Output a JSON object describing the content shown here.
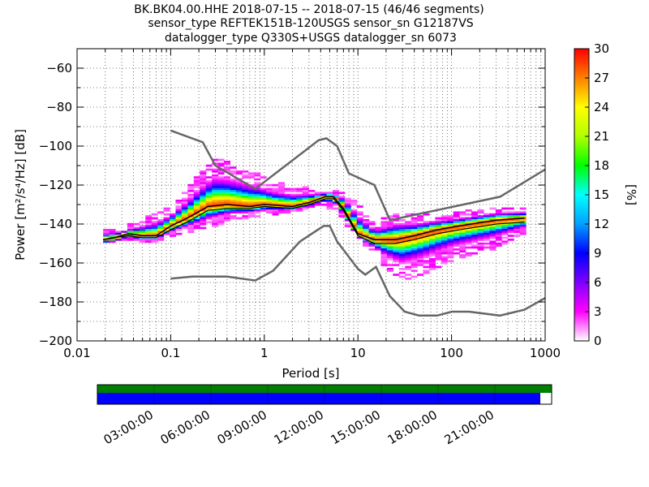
{
  "title_lines": [
    "BK.BK04.00.HHE   2018-07-15 -- 2018-07-15  (46/46 segments)",
    "sensor_type REFTEK151B-120USGS sensor_sn G12187VS",
    "datalogger_type Q330S+USGS datalogger_sn 6073"
  ],
  "chart_data": {
    "type": "heatmap",
    "xlabel": "Period [s]",
    "ylabel": "Power [m²/s⁴/Hz] [dB]",
    "x_scale": "log",
    "xlim": [
      0.01,
      1000
    ],
    "ylim": [
      -200,
      -50
    ],
    "x_ticks": [
      {
        "value": 0.01,
        "label": "0.01"
      },
      {
        "value": 0.1,
        "label": "0.1"
      },
      {
        "value": 1,
        "label": "1"
      },
      {
        "value": 10,
        "label": "10"
      },
      {
        "value": 100,
        "label": "100"
      },
      {
        "value": 1000,
        "label": "1000"
      }
    ],
    "y_ticks": [
      -60,
      -80,
      -100,
      -120,
      -140,
      -160,
      -180,
      -200
    ],
    "grid": true,
    "colorbar": {
      "label": "[%]",
      "min": 0,
      "max": 30,
      "ticks": [
        0,
        3,
        6,
        9,
        12,
        15,
        18,
        21,
        24,
        27,
        30
      ]
    },
    "noise_models": {
      "high": [
        [
          0.1,
          -92
        ],
        [
          0.22,
          -98
        ],
        [
          0.3,
          -110
        ],
        [
          0.8,
          -122
        ],
        [
          3.8,
          -97
        ],
        [
          4.6,
          -96
        ],
        [
          6.0,
          -100
        ],
        [
          8.0,
          -114
        ],
        [
          15.0,
          -120
        ],
        [
          22.0,
          -138
        ],
        [
          330.0,
          -126
        ],
        [
          1000.0,
          -112
        ]
      ],
      "low": [
        [
          0.1,
          -168
        ],
        [
          0.17,
          -167
        ],
        [
          0.4,
          -167
        ],
        [
          0.8,
          -169
        ],
        [
          1.24,
          -164
        ],
        [
          2.4,
          -149
        ],
        [
          4.3,
          -141
        ],
        [
          5.0,
          -141
        ],
        [
          6.0,
          -149
        ],
        [
          10.0,
          -163
        ],
        [
          12.0,
          -166
        ],
        [
          15.6,
          -162
        ],
        [
          21.9,
          -177
        ],
        [
          31.6,
          -185
        ],
        [
          45.0,
          -187
        ],
        [
          70.0,
          -187
        ],
        [
          101.0,
          -185
        ],
        [
          154.0,
          -185
        ],
        [
          328.0,
          -187
        ],
        [
          600.0,
          -184
        ],
        [
          1000.0,
          -178
        ]
      ]
    },
    "mode_curve": [
      [
        0.019,
        -148
      ],
      [
        0.025,
        -147
      ],
      [
        0.035,
        -145
      ],
      [
        0.05,
        -146
      ],
      [
        0.07,
        -146
      ],
      [
        0.1,
        -141
      ],
      [
        0.15,
        -137
      ],
      [
        0.25,
        -131
      ],
      [
        0.4,
        -130
      ],
      [
        0.7,
        -131
      ],
      [
        1.0,
        -130
      ],
      [
        2.0,
        -131
      ],
      [
        3.0,
        -129
      ],
      [
        4.5,
        -126
      ],
      [
        5.5,
        -126
      ],
      [
        7.0,
        -132
      ],
      [
        10.0,
        -145
      ],
      [
        15.0,
        -148
      ],
      [
        25.0,
        -148
      ],
      [
        40.0,
        -146
      ],
      [
        70.0,
        -143
      ],
      [
        120.0,
        -141
      ],
      [
        300.0,
        -138
      ],
      [
        600.0,
        -137
      ]
    ],
    "mean_curve": [
      [
        0.019,
        -148
      ],
      [
        0.025,
        -147
      ],
      [
        0.035,
        -146
      ],
      [
        0.05,
        -147
      ],
      [
        0.07,
        -147
      ],
      [
        0.1,
        -143
      ],
      [
        0.15,
        -139
      ],
      [
        0.25,
        -133
      ],
      [
        0.4,
        -132
      ],
      [
        0.7,
        -132
      ],
      [
        1.0,
        -131
      ],
      [
        2.0,
        -132
      ],
      [
        3.0,
        -130
      ],
      [
        4.5,
        -127
      ],
      [
        5.5,
        -127
      ],
      [
        7.0,
        -133
      ],
      [
        10.0,
        -146
      ],
      [
        15.0,
        -150
      ],
      [
        25.0,
        -150
      ],
      [
        40.0,
        -148
      ],
      [
        70.0,
        -145
      ],
      [
        120.0,
        -143
      ],
      [
        300.0,
        -140
      ],
      [
        600.0,
        -139
      ]
    ],
    "upper_spread": [
      [
        0.03,
        -143
      ],
      [
        0.05,
        -138
      ],
      [
        0.1,
        -132
      ],
      [
        0.15,
        -123
      ],
      [
        0.2,
        -115
      ],
      [
        0.3,
        -107
      ],
      [
        0.5,
        -110
      ],
      [
        0.8,
        -114
      ],
      [
        1.2,
        -119
      ],
      [
        2.0,
        -121
      ],
      [
        3.0,
        -122
      ],
      [
        5.0,
        -124
      ],
      [
        7.0,
        -123
      ],
      [
        10.0,
        -130
      ],
      [
        15.0,
        -140
      ],
      [
        25.0,
        -135
      ],
      [
        40.0,
        -136
      ],
      [
        100.0,
        -135
      ],
      [
        300.0,
        -132
      ],
      [
        600.0,
        -132
      ]
    ],
    "lower_spread": [
      [
        0.03,
        -147
      ],
      [
        0.05,
        -149
      ],
      [
        0.08,
        -148
      ],
      [
        0.1,
        -146
      ],
      [
        0.2,
        -143
      ],
      [
        0.5,
        -137
      ],
      [
        1.0,
        -135
      ],
      [
        2.0,
        -133
      ],
      [
        4.0,
        -130
      ],
      [
        6.0,
        -132
      ],
      [
        10.0,
        -148
      ],
      [
        15.0,
        -155
      ],
      [
        20.0,
        -162
      ],
      [
        30.0,
        -168
      ],
      [
        50.0,
        -165
      ],
      [
        100.0,
        -158
      ],
      [
        300.0,
        -152
      ],
      [
        600.0,
        -145
      ]
    ]
  },
  "data_coverage": {
    "time_ticks": [
      "03:00:00",
      "06:00:00",
      "09:00:00",
      "12:00:00",
      "15:00:00",
      "18:00:00",
      "21:00:00"
    ],
    "available_fraction": 0.975
  },
  "colors": {
    "noise_model": "#666666",
    "mode": "#000000",
    "mean": "#000000",
    "coverage_top": "#008000",
    "coverage_bottom": "#0000ff"
  }
}
